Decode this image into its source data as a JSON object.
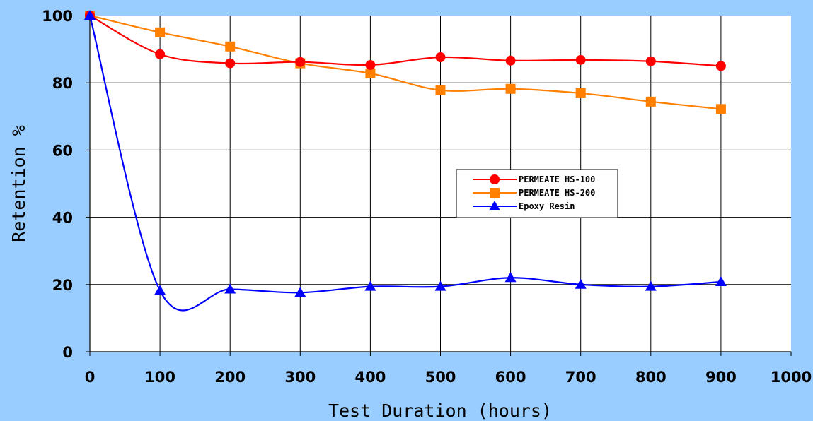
{
  "chart_data": {
    "type": "line",
    "x": [
      0,
      100,
      200,
      300,
      400,
      500,
      600,
      700,
      800,
      900
    ],
    "xlabel": "Test Duration (hours)",
    "ylabel": "Retention %",
    "xlim": [
      0,
      1000
    ],
    "ylim": [
      0,
      100
    ],
    "xticks": [
      "0",
      "100",
      "200",
      "300",
      "400",
      "500",
      "600",
      "700",
      "800",
      "900",
      "1000"
    ],
    "yticks": [
      "0",
      "20",
      "40",
      "60",
      "80",
      "100"
    ],
    "grid": true,
    "smooth": true,
    "legend_position": "center-right",
    "series": [
      {
        "name": "PERMEATE HS-100",
        "color": "#ff0000",
        "marker": "circle",
        "values": [
          100,
          88.5,
          85.8,
          86.2,
          85.3,
          87.6,
          86.6,
          86.8,
          86.4,
          85.0
        ]
      },
      {
        "name": "PERMEATE HS-200",
        "color": "#ff8000",
        "marker": "square",
        "values": [
          100,
          95.0,
          90.8,
          85.8,
          82.8,
          77.8,
          78.2,
          76.9,
          74.4,
          72.2
        ]
      },
      {
        "name": "Epoxy Resin",
        "color": "#0000ff",
        "marker": "triangle",
        "values": [
          100,
          18.2,
          18.6,
          17.6,
          19.4,
          19.4,
          22.0,
          20.0,
          19.4,
          20.8
        ]
      }
    ]
  }
}
